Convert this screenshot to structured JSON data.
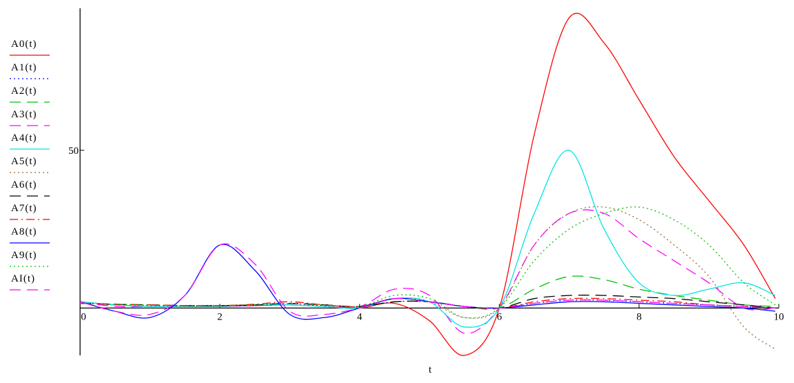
{
  "chart_data": {
    "type": "line",
    "xlabel": "t",
    "ylabel": "",
    "xlim": [
      0,
      10
    ],
    "ylim": [
      -15,
      95
    ],
    "x_ticks": [
      "0",
      "2",
      "4",
      "6",
      "8",
      "10"
    ],
    "y_ticks": [
      "50"
    ],
    "legend_position": "left",
    "x": [
      0,
      0.5,
      1,
      1.5,
      2,
      2.5,
      3,
      3.5,
      4,
      4.5,
      5,
      5.5,
      6,
      6.5,
      7,
      7.5,
      8,
      8.5,
      9,
      9.5,
      9.95
    ],
    "series": [
      {
        "name": "A0(t)",
        "color": "#ff0000",
        "dash": "",
        "values": [
          2,
          1,
          0.5,
          0.5,
          0.5,
          0.8,
          1,
          0.5,
          0,
          1.5,
          -4,
          -15,
          0,
          55,
          92,
          84,
          66,
          48,
          34,
          20,
          3
        ]
      },
      {
        "name": "A1(t)",
        "color": "#0000ff",
        "dash": "2,4",
        "values": [
          1.5,
          1.2,
          0.8,
          0.6,
          0.6,
          0.8,
          1,
          0.8,
          0.5,
          2,
          2,
          0.5,
          0,
          1.5,
          2.5,
          2.5,
          2,
          1.5,
          1,
          0.5,
          0
        ]
      },
      {
        "name": "A2(t)",
        "color": "#00c000",
        "dash": "16,9",
        "values": [
          1.5,
          1.2,
          1,
          0.8,
          0.8,
          1,
          1.5,
          1,
          0.5,
          2,
          2,
          0.5,
          0,
          6,
          10,
          9,
          6,
          4,
          2.5,
          1,
          0.5
        ]
      },
      {
        "name": "A3(t)",
        "color": "#ff00ff",
        "dash": "16,9",
        "values": [
          2,
          0.5,
          0.5,
          0.5,
          0.5,
          0.8,
          1.5,
          1,
          0.5,
          6,
          4,
          -8,
          0,
          20,
          30,
          30,
          22,
          15,
          8,
          0,
          0
        ]
      },
      {
        "name": "A4(t)",
        "color": "#00e5e5",
        "dash": "",
        "values": [
          2,
          1,
          0.5,
          0.5,
          0.5,
          1,
          1,
          0.5,
          0,
          3,
          2,
          -6,
          0,
          30,
          50,
          25,
          8,
          4,
          6,
          8,
          4
        ]
      },
      {
        "name": "A5(t)",
        "color": "#996633",
        "dash": "2,4",
        "values": [
          1.5,
          1.2,
          0.8,
          0.6,
          0.6,
          1,
          1.5,
          1,
          0.5,
          3,
          2,
          -3,
          0,
          20,
          30,
          32,
          28,
          20,
          10,
          -6,
          -13
        ]
      },
      {
        "name": "A6(t)",
        "color": "#000000",
        "dash": "16,9",
        "values": [
          1.5,
          1.2,
          1,
          0.8,
          0.8,
          1,
          1.5,
          1,
          0.5,
          2,
          2,
          0.5,
          0,
          3,
          4,
          4,
          3.5,
          3,
          2,
          1,
          0
        ]
      },
      {
        "name": "A7(t)",
        "color": "#ff0000",
        "dash": "12,5,2,5",
        "values": [
          1.5,
          1.2,
          1,
          0.8,
          0.8,
          1.2,
          2,
          1,
          0.5,
          3,
          2,
          0.5,
          0,
          2,
          3,
          3,
          2.5,
          2,
          1,
          0.5,
          0
        ]
      },
      {
        "name": "A8(t)",
        "color": "#0000ff",
        "dash": "",
        "values": [
          2,
          -1,
          -3,
          4,
          20,
          12,
          -2,
          -3,
          0,
          3,
          2,
          0.5,
          0,
          1,
          2,
          2,
          1.5,
          1,
          0.5,
          0,
          -1
        ]
      },
      {
        "name": "A9(t)",
        "color": "#00c000",
        "dash": "2,4",
        "values": [
          1.5,
          1.2,
          1,
          0.8,
          0.8,
          1,
          1.5,
          1,
          0.5,
          4,
          3,
          -3,
          0,
          15,
          25,
          30,
          32,
          28,
          20,
          8,
          1
        ]
      },
      {
        "name": "AI(t)",
        "color": "#ff00ff",
        "dash": "16,9",
        "values": [
          2,
          -1,
          -2,
          4,
          20,
          14,
          -1,
          -2,
          0,
          3,
          2,
          0.5,
          0,
          1.5,
          2.5,
          2.5,
          2,
          1.5,
          1,
          0.5,
          0
        ]
      }
    ]
  }
}
